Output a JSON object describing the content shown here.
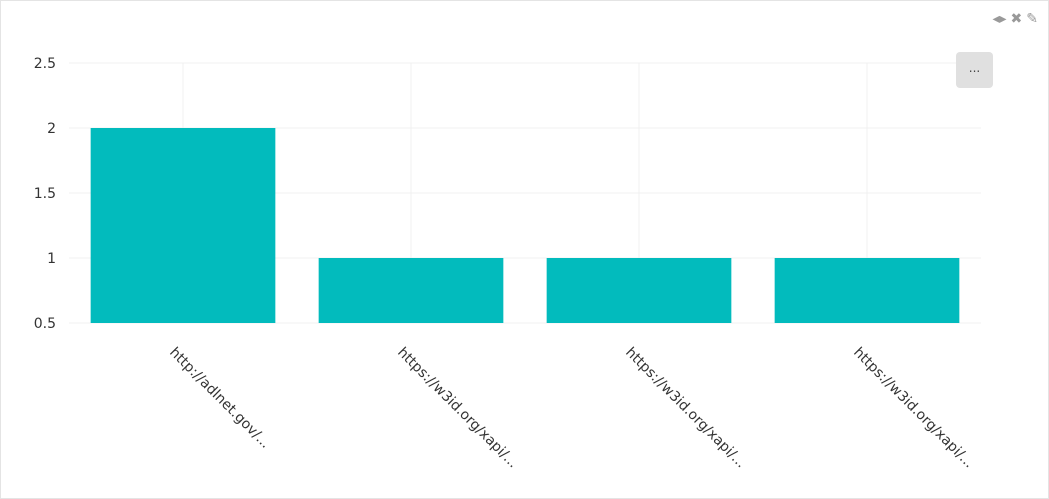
{
  "toolbar": {
    "move_icon": "arrows-left-right-icon",
    "close_icon": "x-icon",
    "edit_icon": "edit-icon",
    "more_label": "..."
  },
  "colors": {
    "bar": "#02bbbd",
    "grid": "#f0f0f0"
  },
  "chart_data": {
    "type": "bar",
    "categories": [
      "http://adlnet.gov/...",
      "https://w3id.org/xapi/...",
      "https://w3id.org/xapi/...",
      "https://w3id.org/xapi/..."
    ],
    "values": [
      2,
      1,
      1,
      1
    ],
    "ylim": [
      0.5,
      2.5
    ],
    "yticks": [
      "0.5",
      "1",
      "1.5",
      "2",
      "2.5"
    ],
    "grid": true,
    "xlabel": "",
    "ylabel": "",
    "title": ""
  }
}
